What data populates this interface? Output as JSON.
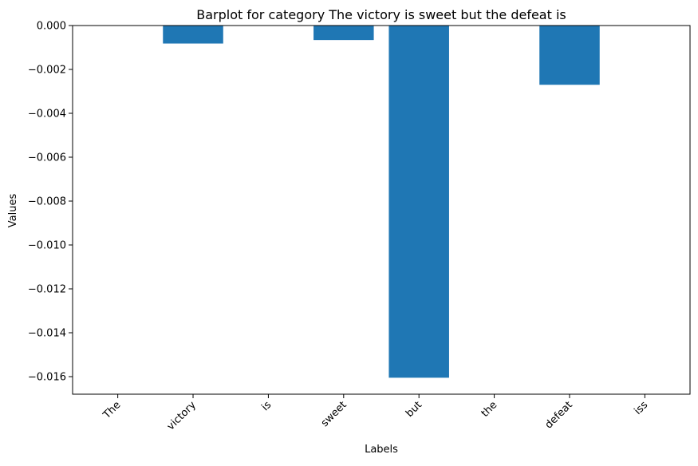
{
  "chart_data": {
    "type": "bar",
    "title": "Barplot for category The victory is sweet but the defeat is",
    "xlabel": "Labels",
    "ylabel": "Values",
    "categories": [
      "The",
      "victory",
      "is",
      "sweet",
      "but",
      "the",
      "defeat",
      "iss"
    ],
    "values": [
      0.0,
      -0.00082,
      0.0,
      -0.00066,
      -0.01605,
      0.0,
      -0.0027,
      0.0
    ],
    "ylim": [
      -0.0168,
      0.0
    ],
    "yticks": [
      0.0,
      -0.002,
      -0.004,
      -0.006,
      -0.008,
      -0.01,
      -0.012,
      -0.014,
      -0.016
    ],
    "ytick_labels": [
      "0.000",
      "−0.002",
      "−0.004",
      "−0.006",
      "−0.008",
      "−0.010",
      "−0.012",
      "−0.014",
      "−0.016"
    ],
    "grid": false,
    "bar_color": "#1f77b4"
  }
}
